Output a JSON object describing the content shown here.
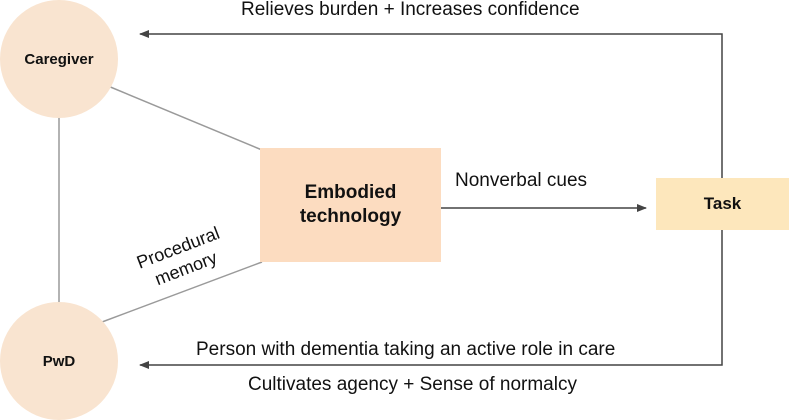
{
  "nodes": {
    "caregiver": "Caregiver",
    "pwd": "PwD",
    "embodied_tech_line1": "Embodied",
    "embodied_tech_line2": "technology",
    "task": "Task"
  },
  "edges": {
    "top_arrow": "Relieves burden + Increases confidence",
    "nonverbal": "Nonverbal cues",
    "procedural_line1": "Procedural",
    "procedural_line2": "memory",
    "bottom_arrow_above": "Person with dementia taking an active role in care",
    "bottom_arrow_below": "Cultivates agency + Sense of normalcy"
  },
  "colors": {
    "circle_fill": "#f9e4d0",
    "embodied_fill": "#fcdcc0",
    "task_fill": "#fde7bc",
    "line": "#9a9a9a",
    "arrow": "#444444"
  }
}
